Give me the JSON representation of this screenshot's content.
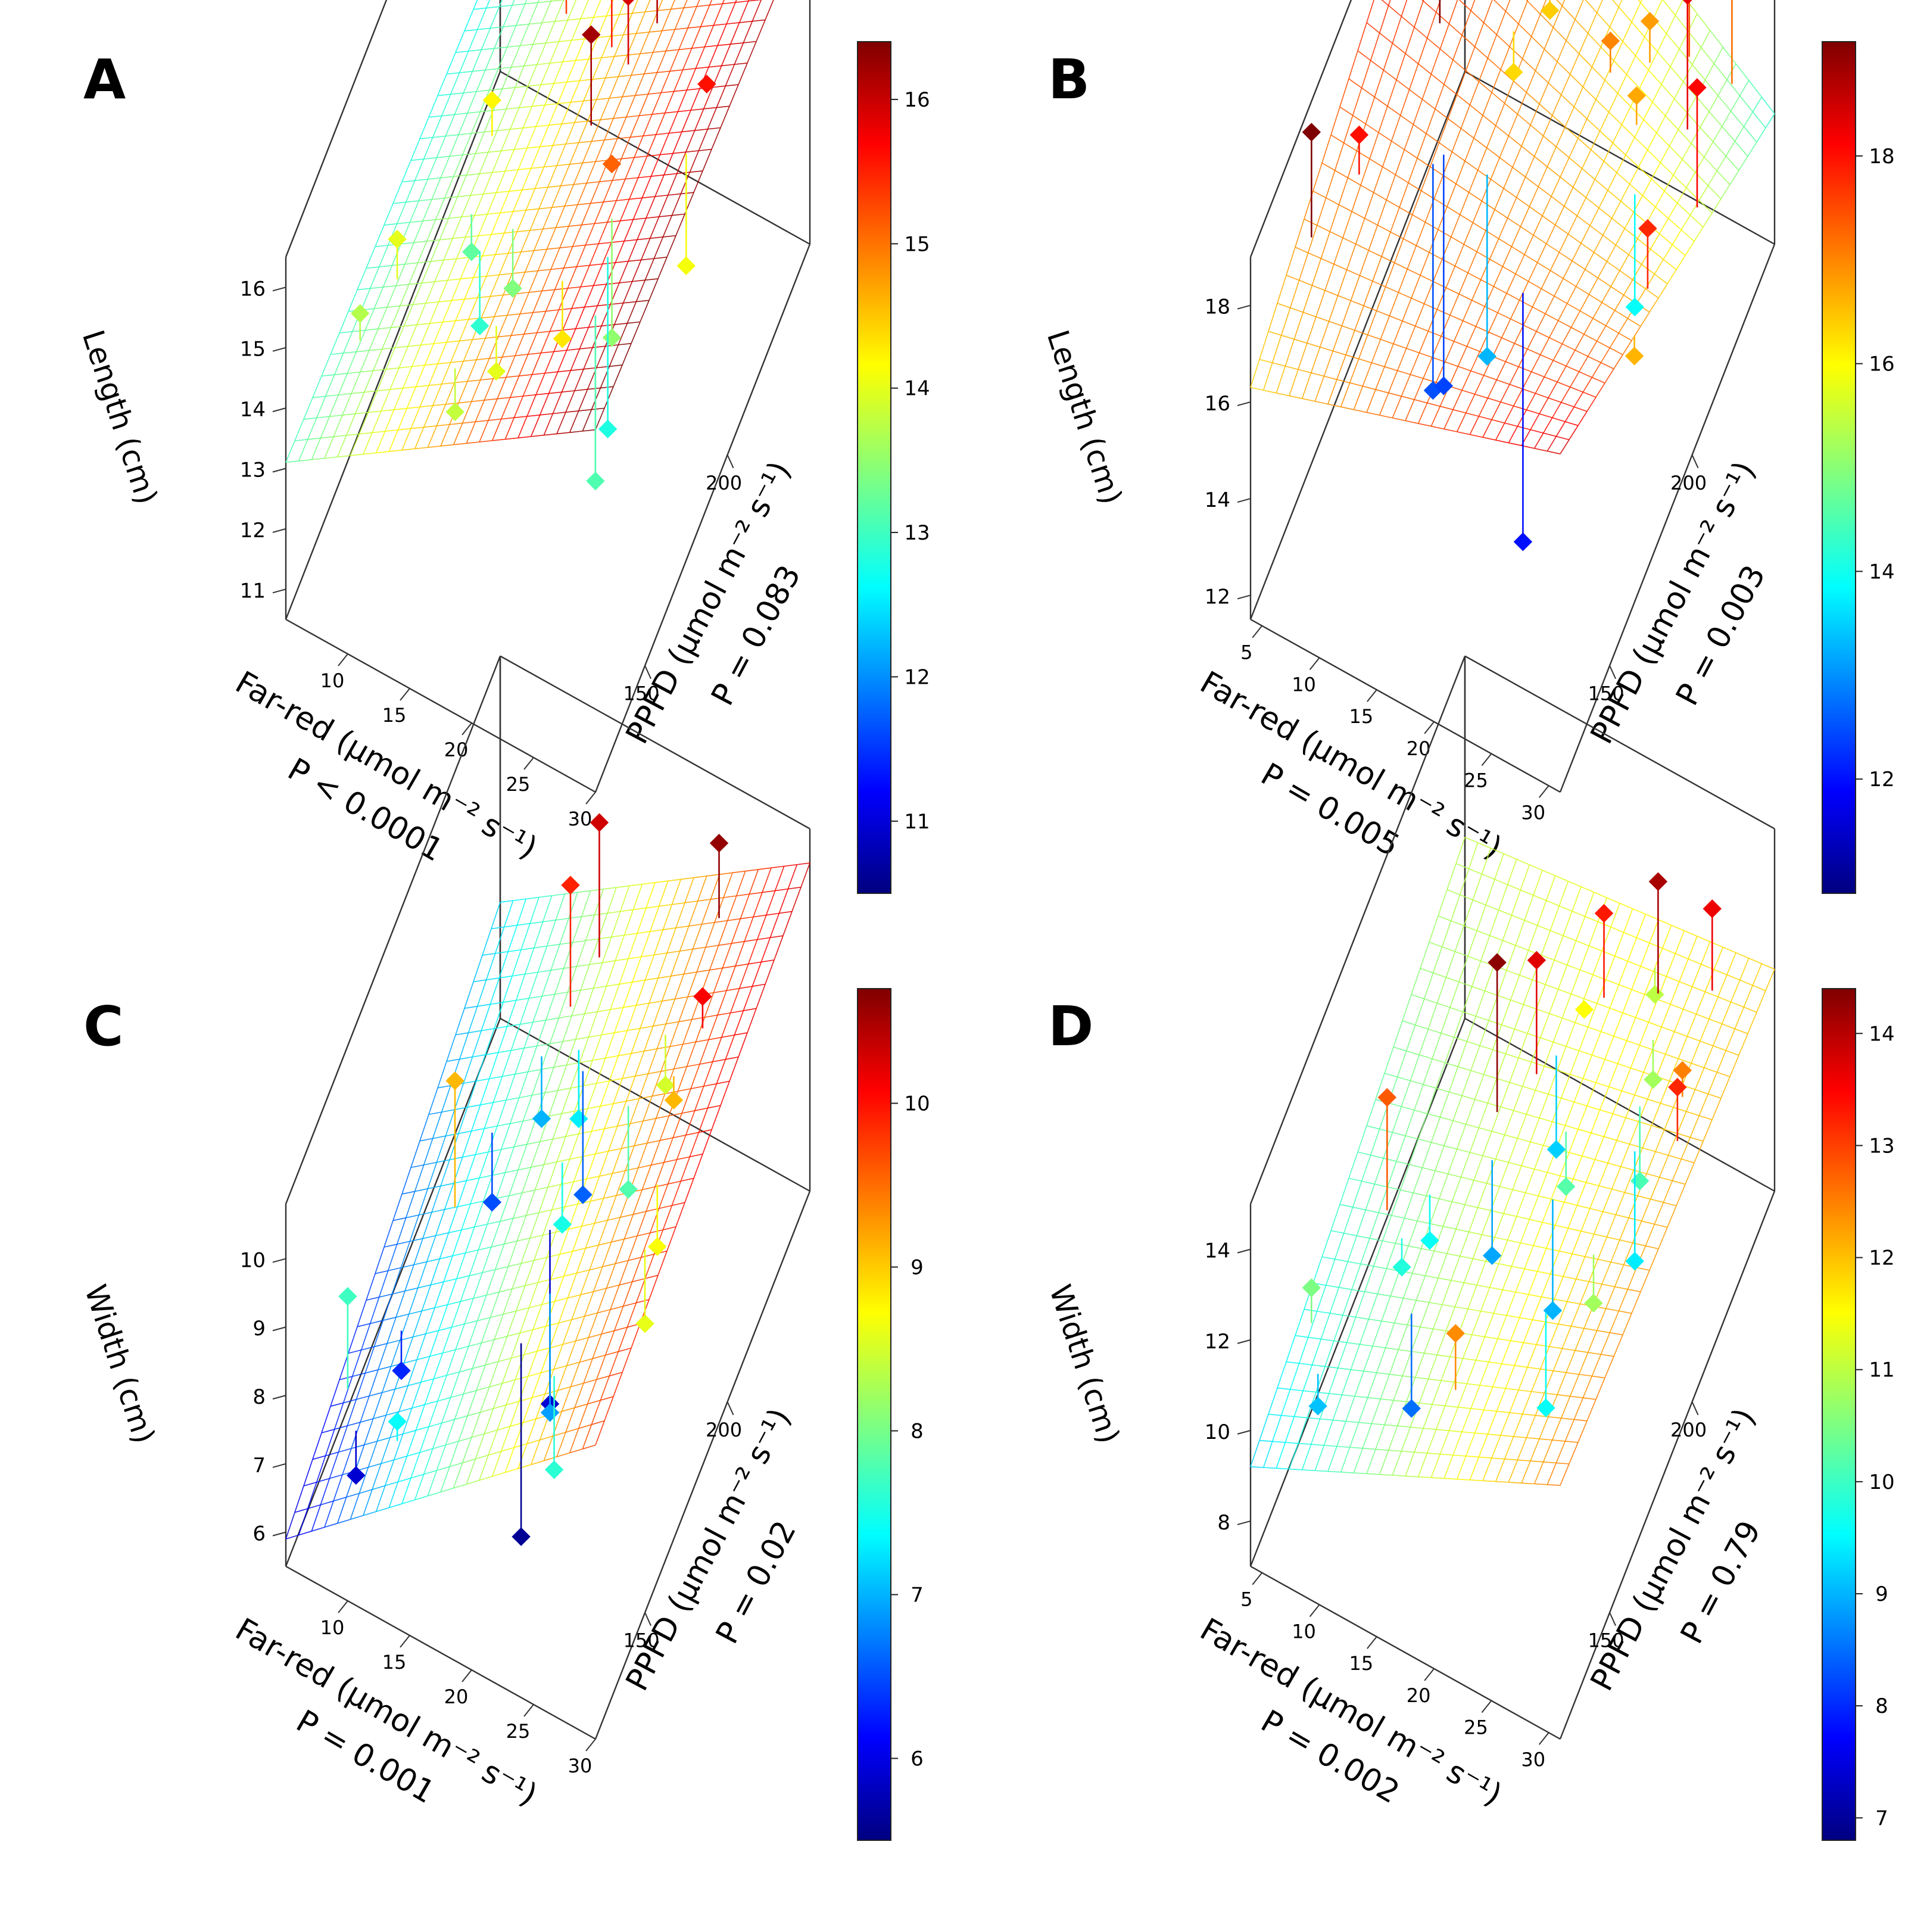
{
  "figure": {
    "description": "Four 3D scatter plots with fitted regression planes of leaf length and width versus far-red and PPFD"
  },
  "chart_data": [
    {
      "panel": "A",
      "type": "scatter",
      "zlabel": "Length (cm)",
      "xlabel_line1": "Far-red (μmol m⁻² s⁻¹)",
      "xlabel_line2": "P < 0.0001",
      "ylabel_line1": "PPFD (μmol m⁻² s⁻¹)",
      "ylabel_line2": "P = 0.083",
      "xlim": [
        5,
        30
      ],
      "ylim": [
        120,
        250
      ],
      "zlim": [
        10.5,
        16.5
      ],
      "xticks": [
        "10",
        "15",
        "20",
        "25",
        "30"
      ],
      "yticks": [
        "150",
        "200"
      ],
      "zticks": [
        "11",
        "12",
        "13",
        "14",
        "15",
        "16"
      ],
      "colorbar": {
        "range": [
          10.5,
          16.4
        ],
        "ticks": [
          "11",
          "12",
          "13",
          "14",
          "15",
          "16"
        ]
      },
      "plane": {
        "z00": 13.1,
        "z10": 16.5,
        "z01": 12.6,
        "z11": 16.0
      },
      "points": [
        {
          "x": 7,
          "y": 150,
          "z": 13.7
        },
        {
          "x": 8,
          "y": 165,
          "z": 14.0
        },
        {
          "x": 11,
          "y": 200,
          "z": 14.2
        },
        {
          "x": 13,
          "y": 230,
          "z": 15.3
        },
        {
          "x": 14,
          "y": 245,
          "z": 15.6
        },
        {
          "x": 15,
          "y": 240,
          "z": 15.9
        },
        {
          "x": 17,
          "y": 235,
          "z": 15.7
        },
        {
          "x": 18,
          "y": 220,
          "z": 15.5
        },
        {
          "x": 12,
          "y": 180,
          "z": 13.2
        },
        {
          "x": 14,
          "y": 170,
          "z": 12.9
        },
        {
          "x": 16,
          "y": 175,
          "z": 13.4
        },
        {
          "x": 19,
          "y": 200,
          "z": 16.2
        },
        {
          "x": 20,
          "y": 215,
          "z": 15.9
        },
        {
          "x": 21,
          "y": 225,
          "z": 16.1
        },
        {
          "x": 22,
          "y": 190,
          "z": 15.1
        },
        {
          "x": 24,
          "y": 175,
          "z": 13.5
        },
        {
          "x": 25,
          "y": 165,
          "z": 12.8
        },
        {
          "x": 26,
          "y": 150,
          "z": 13.1
        },
        {
          "x": 27,
          "y": 210,
          "z": 15.6
        },
        {
          "x": 28,
          "y": 190,
          "z": 14.1
        },
        {
          "x": 29,
          "y": 230,
          "z": 16.0
        },
        {
          "x": 22,
          "y": 160,
          "z": 14.3
        },
        {
          "x": 18,
          "y": 150,
          "z": 14.0
        },
        {
          "x": 16,
          "y": 140,
          "z": 13.8
        }
      ]
    },
    {
      "panel": "B",
      "type": "scatter",
      "zlabel": "Length (cm)",
      "xlabel_line1": "Far-red (μmol m⁻² s⁻¹)",
      "xlabel_line2": "P = 0.005",
      "ylabel_line1": "PPFD (μmol m⁻² s⁻¹)",
      "ylabel_line2": "P = 0.003",
      "xlim": [
        4,
        31
      ],
      "ylim": [
        120,
        250
      ],
      "zlim": [
        11.5,
        19
      ],
      "xticks": [
        "5",
        "10",
        "15",
        "20",
        "25",
        "30"
      ],
      "yticks": [
        "150",
        "200"
      ],
      "zticks": [
        "12",
        "14",
        "16",
        "18"
      ],
      "colorbar": {
        "range": [
          10.9,
          19.1
        ],
        "ticks": [
          "12",
          "14",
          "16",
          "18"
        ]
      },
      "plane": {
        "z00": 16.3,
        "z10": 18.5,
        "z01": 18.9,
        "z11": 14.2
      },
      "points": [
        {
          "x": 5,
          "y": 150,
          "z": 19.1
        },
        {
          "x": 7,
          "y": 165,
          "z": 18.0
        },
        {
          "x": 9,
          "y": 200,
          "z": 19.2
        },
        {
          "x": 12,
          "y": 175,
          "z": 12.5
        },
        {
          "x": 12.5,
          "y": 178,
          "z": 12.4
        },
        {
          "x": 14,
          "y": 210,
          "z": 16.3
        },
        {
          "x": 15,
          "y": 225,
          "z": 16.4
        },
        {
          "x": 16,
          "y": 180,
          "z": 13.3
        },
        {
          "x": 18,
          "y": 235,
          "z": 16.5
        },
        {
          "x": 19,
          "y": 240,
          "z": 17.1
        },
        {
          "x": 20,
          "y": 245,
          "z": 17.3
        },
        {
          "x": 21,
          "y": 220,
          "z": 17.0
        },
        {
          "x": 22,
          "y": 160,
          "z": 12.0
        },
        {
          "x": 23,
          "y": 230,
          "z": 16.8
        },
        {
          "x": 24,
          "y": 215,
          "z": 16.7
        },
        {
          "x": 25,
          "y": 240,
          "z": 17.4
        },
        {
          "x": 26,
          "y": 200,
          "z": 13.9
        },
        {
          "x": 27,
          "y": 225,
          "z": 18.3
        },
        {
          "x": 28,
          "y": 245,
          "z": 17.2
        },
        {
          "x": 30,
          "y": 210,
          "z": 18.1
        },
        {
          "x": 30,
          "y": 180,
          "z": 17.8
        },
        {
          "x": 31,
          "y": 165,
          "z": 16.6
        }
      ]
    },
    {
      "panel": "C",
      "type": "scatter",
      "zlabel": "Width (cm)",
      "xlabel_line1": "Far-red (μmol m⁻² s⁻¹)",
      "xlabel_line2": "P = 0.001",
      "ylabel_line1": "PPFD (μmol m⁻² s⁻¹)",
      "ylabel_line2": "P = 0.02",
      "xlim": [
        5,
        30
      ],
      "ylim": [
        120,
        250
      ],
      "zlim": [
        5.5,
        10.8
      ],
      "xticks": [
        "10",
        "15",
        "20",
        "25",
        "30"
      ],
      "yticks": [
        "150",
        "200"
      ],
      "zticks": [
        "6",
        "7",
        "8",
        "9",
        "10"
      ],
      "colorbar": {
        "range": [
          5.5,
          10.7
        ],
        "ticks": [
          "6",
          "7",
          "8",
          "9",
          "10"
        ]
      },
      "plane": {
        "z00": 5.9,
        "z10": 9.8,
        "z01": 7.2,
        "z11": 10.3
      },
      "points": [
        {
          "x": 6,
          "y": 150,
          "z": 7.7
        },
        {
          "x": 8,
          "y": 140,
          "z": 5.9
        },
        {
          "x": 9,
          "y": 160,
          "z": 6.3
        },
        {
          "x": 10,
          "y": 185,
          "z": 9.1
        },
        {
          "x": 11,
          "y": 200,
          "z": 6.5
        },
        {
          "x": 13,
          "y": 215,
          "z": 7.0
        },
        {
          "x": 14,
          "y": 225,
          "z": 9.9
        },
        {
          "x": 15,
          "y": 235,
          "z": 10.3
        },
        {
          "x": 16,
          "y": 215,
          "z": 7.3
        },
        {
          "x": 17,
          "y": 210,
          "z": 6.6
        },
        {
          "x": 18,
          "y": 190,
          "z": 7.5
        },
        {
          "x": 19,
          "y": 175,
          "z": 5.9
        },
        {
          "x": 20,
          "y": 150,
          "z": 5.6
        },
        {
          "x": 21,
          "y": 160,
          "z": 6.9
        },
        {
          "x": 22,
          "y": 200,
          "z": 7.8
        },
        {
          "x": 23,
          "y": 215,
          "z": 8.5
        },
        {
          "x": 24,
          "y": 240,
          "z": 10.6
        },
        {
          "x": 25,
          "y": 205,
          "z": 9.1
        },
        {
          "x": 26,
          "y": 215,
          "z": 10.1
        },
        {
          "x": 27,
          "y": 180,
          "z": 8.7
        },
        {
          "x": 28,
          "y": 165,
          "z": 8.6
        },
        {
          "x": 24,
          "y": 140,
          "z": 7.6
        },
        {
          "x": 12,
          "y": 135,
          "z": 7.4
        }
      ]
    },
    {
      "panel": "D",
      "type": "scatter",
      "zlabel": "Width (cm)",
      "xlabel_line1": "Far-red (μmol m⁻² s⁻¹)",
      "xlabel_line2": "P = 0.002",
      "ylabel_line1": "PPFD (μmol m⁻² s⁻¹)",
      "ylabel_line2": "P = 0.79",
      "xlim": [
        4,
        31
      ],
      "ylim": [
        120,
        250
      ],
      "zlim": [
        7,
        15
      ],
      "xticks": [
        "5",
        "10",
        "15",
        "20",
        "25",
        "30"
      ],
      "yticks": [
        "150",
        "200"
      ],
      "zticks": [
        "8",
        "10",
        "12",
        "14"
      ],
      "colorbar": {
        "range": [
          6.8,
          14.4
        ],
        "ticks": [
          "7",
          "8",
          "9",
          "10",
          "11",
          "12",
          "13",
          "14"
        ]
      },
      "plane": {
        "z00": 9.2,
        "z10": 12.6,
        "z01": 11.0,
        "z11": 11.9
      },
      "points": [
        {
          "x": 5,
          "y": 150,
          "z": 10.5
        },
        {
          "x": 7,
          "y": 140,
          "z": 9.1
        },
        {
          "x": 8,
          "y": 175,
          "z": 12.8
        },
        {
          "x": 10,
          "y": 170,
          "z": 9.8
        },
        {
          "x": 11,
          "y": 180,
          "z": 9.6
        },
        {
          "x": 13,
          "y": 155,
          "z": 8.5
        },
        {
          "x": 14,
          "y": 200,
          "z": 14.3
        },
        {
          "x": 15,
          "y": 190,
          "z": 8.9
        },
        {
          "x": 16,
          "y": 210,
          "z": 13.7
        },
        {
          "x": 17,
          "y": 215,
          "z": 9.2
        },
        {
          "x": 18,
          "y": 225,
          "z": 11.5
        },
        {
          "x": 19,
          "y": 230,
          "z": 13.3
        },
        {
          "x": 20,
          "y": 200,
          "z": 10.2
        },
        {
          "x": 21,
          "y": 185,
          "z": 9.0
        },
        {
          "x": 22,
          "y": 240,
          "z": 11.0
        },
        {
          "x": 23,
          "y": 235,
          "z": 14.1
        },
        {
          "x": 24,
          "y": 225,
          "z": 10.8
        },
        {
          "x": 25,
          "y": 210,
          "z": 10.1
        },
        {
          "x": 26,
          "y": 200,
          "z": 9.4
        },
        {
          "x": 27,
          "y": 240,
          "z": 13.6
        },
        {
          "x": 28,
          "y": 215,
          "z": 12.5
        },
        {
          "x": 29,
          "y": 205,
          "z": 13.2
        },
        {
          "x": 24,
          "y": 160,
          "z": 9.6
        },
        {
          "x": 26,
          "y": 175,
          "z": 10.8
        },
        {
          "x": 19,
          "y": 140,
          "z": 12.4
        }
      ]
    }
  ]
}
